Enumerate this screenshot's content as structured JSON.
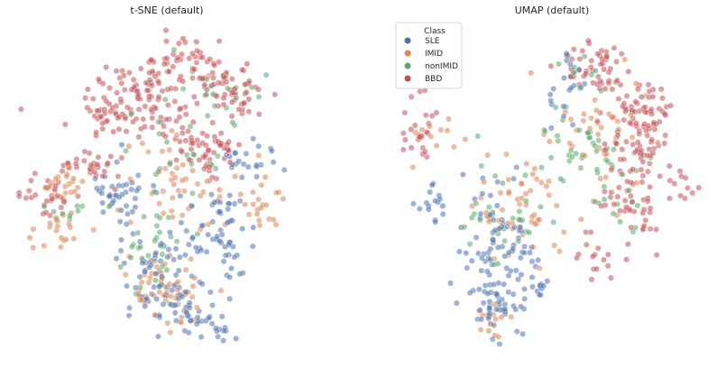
{
  "chart_data": [
    {
      "type": "scatter",
      "title": "t-SNE (default)",
      "xlabel": "",
      "ylabel": "",
      "axes_visible": false,
      "grid": false,
      "legend": false,
      "clusters": [
        {
          "series": "BBD",
          "cx": 0.42,
          "cy": 0.22,
          "sx": 0.1,
          "sy": 0.07,
          "n": 110
        },
        {
          "series": "BBD",
          "cx": 0.72,
          "cy": 0.2,
          "sx": 0.06,
          "sy": 0.05,
          "n": 50
        },
        {
          "series": "BBD",
          "cx": 0.59,
          "cy": 0.1,
          "sx": 0.06,
          "sy": 0.04,
          "n": 40
        },
        {
          "series": "BBD",
          "cx": 0.62,
          "cy": 0.37,
          "sx": 0.05,
          "sy": 0.04,
          "n": 55
        },
        {
          "series": "BBD",
          "cx": 0.26,
          "cy": 0.43,
          "sx": 0.05,
          "sy": 0.03,
          "n": 30
        },
        {
          "series": "BBD",
          "cx": 0.1,
          "cy": 0.52,
          "sx": 0.05,
          "sy": 0.03,
          "n": 28
        },
        {
          "series": "BBD",
          "cx": 0.3,
          "cy": 0.28,
          "sx": 0.04,
          "sy": 0.03,
          "n": 20
        },
        {
          "series": "SLE",
          "cx": 0.48,
          "cy": 0.75,
          "sx": 0.07,
          "sy": 0.08,
          "n": 75
        },
        {
          "series": "SLE",
          "cx": 0.6,
          "cy": 0.9,
          "sx": 0.06,
          "sy": 0.03,
          "n": 38
        },
        {
          "series": "SLE",
          "cx": 0.7,
          "cy": 0.58,
          "sx": 0.05,
          "sy": 0.04,
          "n": 30
        },
        {
          "series": "SLE",
          "cx": 0.35,
          "cy": 0.5,
          "sx": 0.06,
          "sy": 0.05,
          "n": 38
        },
        {
          "series": "SLE",
          "cx": 0.7,
          "cy": 0.72,
          "sx": 0.05,
          "sy": 0.04,
          "n": 22
        },
        {
          "series": "SLE",
          "cx": 0.77,
          "cy": 0.4,
          "sx": 0.04,
          "sy": 0.03,
          "n": 22
        },
        {
          "series": "IMID",
          "cx": 0.5,
          "cy": 0.82,
          "sx": 0.06,
          "sy": 0.06,
          "n": 55
        },
        {
          "series": "IMID",
          "cx": 0.82,
          "cy": 0.55,
          "sx": 0.03,
          "sy": 0.04,
          "n": 22
        },
        {
          "series": "IMID",
          "cx": 0.14,
          "cy": 0.63,
          "sx": 0.04,
          "sy": 0.03,
          "n": 20
        },
        {
          "series": "IMID",
          "cx": 0.53,
          "cy": 0.45,
          "sx": 0.08,
          "sy": 0.1,
          "n": 45
        },
        {
          "series": "IMID",
          "cx": 0.15,
          "cy": 0.48,
          "sx": 0.05,
          "sy": 0.03,
          "n": 20
        },
        {
          "series": "nonIMID",
          "cx": 0.45,
          "cy": 0.7,
          "sx": 0.08,
          "sy": 0.07,
          "n": 30
        },
        {
          "series": "nonIMID",
          "cx": 0.55,
          "cy": 0.42,
          "sx": 0.08,
          "sy": 0.08,
          "n": 25
        },
        {
          "series": "nonIMID",
          "cx": 0.65,
          "cy": 0.18,
          "sx": 0.08,
          "sy": 0.05,
          "n": 20
        },
        {
          "series": "nonIMID",
          "cx": 0.18,
          "cy": 0.55,
          "sx": 0.06,
          "sy": 0.03,
          "n": 10
        }
      ]
    },
    {
      "type": "scatter",
      "title": "UMAP (default)",
      "xlabel": "",
      "ylabel": "",
      "axes_visible": false,
      "grid": false,
      "legend": true,
      "legend_position": "upper-left",
      "legend_title": "Class",
      "clusters": [
        {
          "series": "BBD",
          "cx": 0.8,
          "cy": 0.3,
          "sx": 0.06,
          "sy": 0.07,
          "n": 90
        },
        {
          "series": "BBD",
          "cx": 0.66,
          "cy": 0.12,
          "sx": 0.06,
          "sy": 0.04,
          "n": 50
        },
        {
          "series": "BBD",
          "cx": 0.78,
          "cy": 0.55,
          "sx": 0.05,
          "sy": 0.08,
          "n": 50
        },
        {
          "series": "BBD",
          "cx": 0.07,
          "cy": 0.33,
          "sx": 0.04,
          "sy": 0.06,
          "n": 25
        },
        {
          "series": "BBD",
          "cx": 0.64,
          "cy": 0.72,
          "sx": 0.03,
          "sy": 0.04,
          "n": 15
        },
        {
          "series": "BBD",
          "cx": 0.93,
          "cy": 0.48,
          "sx": 0.02,
          "sy": 0.04,
          "n": 12
        },
        {
          "series": "SLE",
          "cx": 0.33,
          "cy": 0.7,
          "sx": 0.07,
          "sy": 0.1,
          "n": 85
        },
        {
          "series": "SLE",
          "cx": 0.32,
          "cy": 0.88,
          "sx": 0.04,
          "sy": 0.05,
          "n": 35
        },
        {
          "series": "SLE",
          "cx": 0.11,
          "cy": 0.53,
          "sx": 0.03,
          "sy": 0.03,
          "n": 15
        },
        {
          "series": "SLE",
          "cx": 0.55,
          "cy": 0.2,
          "sx": 0.04,
          "sy": 0.06,
          "n": 20
        },
        {
          "series": "SLE",
          "cx": 0.45,
          "cy": 0.8,
          "sx": 0.03,
          "sy": 0.03,
          "n": 12
        },
        {
          "series": "IMID",
          "cx": 0.4,
          "cy": 0.57,
          "sx": 0.08,
          "sy": 0.1,
          "n": 55
        },
        {
          "series": "IMID",
          "cx": 0.67,
          "cy": 0.32,
          "sx": 0.08,
          "sy": 0.1,
          "n": 40
        },
        {
          "series": "IMID",
          "cx": 0.32,
          "cy": 0.93,
          "sx": 0.03,
          "sy": 0.03,
          "n": 15
        },
        {
          "series": "IMID",
          "cx": 0.1,
          "cy": 0.35,
          "sx": 0.04,
          "sy": 0.06,
          "n": 12
        },
        {
          "series": "nonIMID",
          "cx": 0.6,
          "cy": 0.35,
          "sx": 0.08,
          "sy": 0.08,
          "n": 35
        },
        {
          "series": "nonIMID",
          "cx": 0.35,
          "cy": 0.6,
          "sx": 0.08,
          "sy": 0.1,
          "n": 30
        },
        {
          "series": "nonIMID",
          "cx": 0.72,
          "cy": 0.5,
          "sx": 0.06,
          "sy": 0.08,
          "n": 15
        },
        {
          "series": "nonIMID",
          "cx": 0.6,
          "cy": 0.12,
          "sx": 0.04,
          "sy": 0.04,
          "n": 8
        }
      ]
    }
  ],
  "legend": {
    "title": "Class",
    "items": [
      {
        "label": "SLE",
        "color": "#4c72b0"
      },
      {
        "label": "IMID",
        "color": "#dd8452"
      },
      {
        "label": "nonIMID",
        "color": "#55a868"
      },
      {
        "label": "BBD",
        "color": "#c44e52"
      }
    ]
  },
  "colors": {
    "SLE": "#4c72b0",
    "IMID": "#dd8452",
    "nonIMID": "#55a868",
    "BBD": "#c44e52"
  }
}
